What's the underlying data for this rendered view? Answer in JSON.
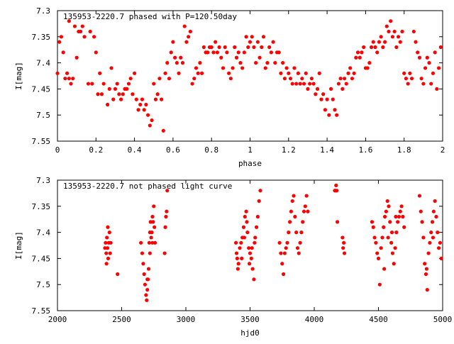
{
  "chart_data": [
    {
      "type": "scatter",
      "title": "135953-2220.7 phased with P=120.50day",
      "xlabel": "phase",
      "ylabel": "I[mag]",
      "xlim": [
        0,
        2
      ],
      "ylim": [
        7.3,
        7.55
      ],
      "y_inverted": true,
      "x_ticks": [
        "0",
        "0.2",
        "0.4",
        "0.6",
        "0.8",
        "1",
        "1.2",
        "1.4",
        "1.6",
        "1.8",
        "2"
      ],
      "y_ticks": [
        "7.3",
        "7.35",
        "7.4",
        "7.45",
        "7.5",
        "7.55"
      ],
      "marker_color": "#ff0000",
      "grid": false,
      "points": [
        [
          0.0,
          7.42
        ],
        [
          0.01,
          7.36
        ],
        [
          0.02,
          7.35
        ],
        [
          0.03,
          7.38
        ],
        [
          0.04,
          7.43
        ],
        [
          0.05,
          7.42
        ],
        [
          0.06,
          7.43
        ],
        [
          0.07,
          7.44
        ],
        [
          0.08,
          7.43
        ],
        [
          0.06,
          7.32
        ],
        [
          0.09,
          7.33
        ],
        [
          0.1,
          7.39
        ],
        [
          0.11,
          7.34
        ],
        [
          0.12,
          7.34
        ],
        [
          0.13,
          7.33
        ],
        [
          0.14,
          7.35
        ],
        [
          0.16,
          7.44
        ],
        [
          0.17,
          7.34
        ],
        [
          0.18,
          7.44
        ],
        [
          0.19,
          7.35
        ],
        [
          0.2,
          7.38
        ],
        [
          0.21,
          7.46
        ],
        [
          0.22,
          7.42
        ],
        [
          0.23,
          7.46
        ],
        [
          0.24,
          7.44
        ],
        [
          0.26,
          7.48
        ],
        [
          0.27,
          7.45
        ],
        [
          0.28,
          7.41
        ],
        [
          0.29,
          7.47
        ],
        [
          0.3,
          7.45
        ],
        [
          0.31,
          7.44
        ],
        [
          0.32,
          7.46
        ],
        [
          0.33,
          7.47
        ],
        [
          0.34,
          7.46
        ],
        [
          0.35,
          7.45
        ],
        [
          0.36,
          7.45
        ],
        [
          0.37,
          7.44
        ],
        [
          0.38,
          7.43
        ],
        [
          0.39,
          7.46
        ],
        [
          0.4,
          7.42
        ],
        [
          0.41,
          7.47
        ],
        [
          0.42,
          7.49
        ],
        [
          0.43,
          7.48
        ],
        [
          0.44,
          7.47
        ],
        [
          0.45,
          7.49
        ],
        [
          0.46,
          7.48
        ],
        [
          0.47,
          7.5
        ],
        [
          0.48,
          7.52
        ],
        [
          0.49,
          7.51
        ],
        [
          0.5,
          7.44
        ],
        [
          0.51,
          7.47
        ],
        [
          0.52,
          7.46
        ],
        [
          0.53,
          7.43
        ],
        [
          0.54,
          7.47
        ],
        [
          0.55,
          7.53
        ],
        [
          0.56,
          7.42
        ],
        [
          0.57,
          7.4
        ],
        [
          0.58,
          7.43
        ],
        [
          0.59,
          7.38
        ],
        [
          0.6,
          7.36
        ],
        [
          0.61,
          7.39
        ],
        [
          0.62,
          7.4
        ],
        [
          0.63,
          7.42
        ],
        [
          0.64,
          7.39
        ],
        [
          0.65,
          7.4
        ],
        [
          0.66,
          7.33
        ],
        [
          0.67,
          7.36
        ],
        [
          0.68,
          7.35
        ],
        [
          0.69,
          7.34
        ],
        [
          0.7,
          7.44
        ],
        [
          0.71,
          7.43
        ],
        [
          0.72,
          7.41
        ],
        [
          0.73,
          7.42
        ],
        [
          0.74,
          7.4
        ],
        [
          0.75,
          7.42
        ],
        [
          0.76,
          7.37
        ],
        [
          0.77,
          7.38
        ],
        [
          0.78,
          7.38
        ],
        [
          0.79,
          7.37
        ],
        [
          0.8,
          7.37
        ],
        [
          0.81,
          7.38
        ],
        [
          0.82,
          7.36
        ],
        [
          0.83,
          7.38
        ],
        [
          0.84,
          7.37
        ],
        [
          0.85,
          7.39
        ],
        [
          0.86,
          7.41
        ],
        [
          0.87,
          7.37
        ],
        [
          0.88,
          7.38
        ],
        [
          0.89,
          7.42
        ],
        [
          0.9,
          7.43
        ],
        [
          0.91,
          7.41
        ],
        [
          0.92,
          7.37
        ],
        [
          0.93,
          7.39
        ],
        [
          0.94,
          7.38
        ],
        [
          0.95,
          7.4
        ],
        [
          0.96,
          7.41
        ],
        [
          0.97,
          7.38
        ],
        [
          0.98,
          7.35
        ],
        [
          0.99,
          7.37
        ],
        [
          1.0,
          7.36
        ],
        [
          1.01,
          7.35
        ],
        [
          1.02,
          7.37
        ],
        [
          1.03,
          7.4
        ],
        [
          1.04,
          7.36
        ],
        [
          1.05,
          7.39
        ],
        [
          1.06,
          7.37
        ],
        [
          1.07,
          7.35
        ],
        [
          1.08,
          7.41
        ],
        [
          1.09,
          7.4
        ],
        [
          1.1,
          7.37
        ],
        [
          1.11,
          7.38
        ],
        [
          1.12,
          7.36
        ],
        [
          1.13,
          7.4
        ],
        [
          1.14,
          7.38
        ],
        [
          1.15,
          7.38
        ],
        [
          1.16,
          7.42
        ],
        [
          1.17,
          7.4
        ],
        [
          1.18,
          7.43
        ],
        [
          1.19,
          7.41
        ],
        [
          1.2,
          7.42
        ],
        [
          1.21,
          7.43
        ],
        [
          1.22,
          7.44
        ],
        [
          1.23,
          7.41
        ],
        [
          1.24,
          7.44
        ],
        [
          1.25,
          7.42
        ],
        [
          1.26,
          7.44
        ],
        [
          1.27,
          7.43
        ],
        [
          1.28,
          7.44
        ],
        [
          1.29,
          7.42
        ],
        [
          1.3,
          7.45
        ],
        [
          1.31,
          7.44
        ],
        [
          1.32,
          7.43
        ],
        [
          1.33,
          7.44
        ],
        [
          1.34,
          7.46
        ],
        [
          1.35,
          7.45
        ],
        [
          1.36,
          7.42
        ],
        [
          1.37,
          7.47
        ],
        [
          1.38,
          7.46
        ],
        [
          1.39,
          7.49
        ],
        [
          1.4,
          7.47
        ],
        [
          1.41,
          7.5
        ],
        [
          1.42,
          7.45
        ],
        [
          1.43,
          7.47
        ],
        [
          1.44,
          7.49
        ],
        [
          1.45,
          7.5
        ],
        [
          1.46,
          7.44
        ],
        [
          1.47,
          7.43
        ],
        [
          1.48,
          7.45
        ],
        [
          1.49,
          7.43
        ],
        [
          1.5,
          7.44
        ],
        [
          1.51,
          7.42
        ],
        [
          1.52,
          7.41
        ],
        [
          1.53,
          7.43
        ],
        [
          1.54,
          7.42
        ],
        [
          1.55,
          7.39
        ],
        [
          1.56,
          7.38
        ],
        [
          1.57,
          7.39
        ],
        [
          1.58,
          7.38
        ],
        [
          1.59,
          7.37
        ],
        [
          1.6,
          7.41
        ],
        [
          1.61,
          7.41
        ],
        [
          1.62,
          7.4
        ],
        [
          1.63,
          7.37
        ],
        [
          1.64,
          7.36
        ],
        [
          1.65,
          7.37
        ],
        [
          1.66,
          7.38
        ],
        [
          1.67,
          7.36
        ],
        [
          1.68,
          7.35
        ],
        [
          1.69,
          7.37
        ],
        [
          1.7,
          7.36
        ],
        [
          1.71,
          7.33
        ],
        [
          1.72,
          7.34
        ],
        [
          1.73,
          7.32
        ],
        [
          1.74,
          7.35
        ],
        [
          1.75,
          7.34
        ],
        [
          1.76,
          7.37
        ],
        [
          1.77,
          7.35
        ],
        [
          1.78,
          7.36
        ],
        [
          1.79,
          7.34
        ],
        [
          1.8,
          7.42
        ],
        [
          1.81,
          7.43
        ],
        [
          1.82,
          7.44
        ],
        [
          1.83,
          7.42
        ],
        [
          1.84,
          7.43
        ],
        [
          1.85,
          7.34
        ],
        [
          1.86,
          7.36
        ],
        [
          1.87,
          7.38
        ],
        [
          1.88,
          7.39
        ],
        [
          1.89,
          7.43
        ],
        [
          1.9,
          7.44
        ],
        [
          1.91,
          7.41
        ],
        [
          1.92,
          7.39
        ],
        [
          1.93,
          7.4
        ],
        [
          1.94,
          7.44
        ],
        [
          1.95,
          7.42
        ],
        [
          1.96,
          7.38
        ],
        [
          1.97,
          7.45
        ],
        [
          1.98,
          7.41
        ],
        [
          1.99,
          7.37
        ]
      ]
    },
    {
      "type": "scatter",
      "title": "135953-2220.7 not phased light curve",
      "xlabel": "hjd0",
      "ylabel": "I[mag]",
      "xlim": [
        2000,
        5000
      ],
      "ylim": [
        7.3,
        7.55
      ],
      "y_inverted": true,
      "x_ticks": [
        "2000",
        "2500",
        "3000",
        "3500",
        "4000",
        "4500",
        "5000"
      ],
      "y_ticks": [
        "7.3",
        "7.35",
        "7.4",
        "7.45",
        "7.5",
        "7.55"
      ],
      "marker_color": "#ff0000",
      "grid": false,
      "points": [
        [
          2370,
          7.43
        ],
        [
          2375,
          7.42
        ],
        [
          2380,
          7.44
        ],
        [
          2385,
          7.41
        ],
        [
          2390,
          7.43
        ],
        [
          2395,
          7.45
        ],
        [
          2400,
          7.42
        ],
        [
          2405,
          7.4
        ],
        [
          2410,
          7.44
        ],
        [
          2415,
          7.42
        ],
        [
          2382,
          7.46
        ],
        [
          2392,
          7.39
        ],
        [
          2468,
          7.48
        ],
        [
          2650,
          7.42
        ],
        [
          2660,
          7.44
        ],
        [
          2668,
          7.46
        ],
        [
          2675,
          7.48
        ],
        [
          2682,
          7.5
        ],
        [
          2690,
          7.52
        ],
        [
          2695,
          7.53
        ],
        [
          2700,
          7.51
        ],
        [
          2705,
          7.49
        ],
        [
          2710,
          7.47
        ],
        [
          2715,
          7.42
        ],
        [
          2720,
          7.4
        ],
        [
          2725,
          7.38
        ],
        [
          2730,
          7.41
        ],
        [
          2735,
          7.4
        ],
        [
          2740,
          7.37
        ],
        [
          2745,
          7.38
        ],
        [
          2750,
          7.35
        ],
        [
          2755,
          7.39
        ],
        [
          2760,
          7.42
        ],
        [
          2740,
          7.42
        ],
        [
          2700,
          7.49
        ],
        [
          2720,
          7.44
        ],
        [
          2835,
          7.44
        ],
        [
          2840,
          7.39
        ],
        [
          2845,
          7.37
        ],
        [
          2850,
          7.36
        ],
        [
          2855,
          7.32
        ],
        [
          3390,
          7.42
        ],
        [
          3395,
          7.44
        ],
        [
          3400,
          7.45
        ],
        [
          3405,
          7.47
        ],
        [
          3410,
          7.46
        ],
        [
          3420,
          7.43
        ],
        [
          3430,
          7.42
        ],
        [
          3440,
          7.41
        ],
        [
          3450,
          7.39
        ],
        [
          3460,
          7.37
        ],
        [
          3470,
          7.36
        ],
        [
          3480,
          7.4
        ],
        [
          3490,
          7.43
        ],
        [
          3500,
          7.44
        ],
        [
          3510,
          7.45
        ],
        [
          3520,
          7.47
        ],
        [
          3530,
          7.49
        ],
        [
          3540,
          7.41
        ],
        [
          3550,
          7.39
        ],
        [
          3560,
          7.37
        ],
        [
          3570,
          7.34
        ],
        [
          3580,
          7.32
        ],
        [
          3435,
          7.45
        ],
        [
          3455,
          7.41
        ],
        [
          3475,
          7.38
        ],
        [
          3495,
          7.46
        ],
        [
          3515,
          7.43
        ],
        [
          3535,
          7.42
        ],
        [
          3730,
          7.42
        ],
        [
          3740,
          7.44
        ],
        [
          3750,
          7.46
        ],
        [
          3760,
          7.48
        ],
        [
          3770,
          7.44
        ],
        [
          3780,
          7.43
        ],
        [
          3790,
          7.42
        ],
        [
          3800,
          7.4
        ],
        [
          3810,
          7.38
        ],
        [
          3820,
          7.36
        ],
        [
          3830,
          7.34
        ],
        [
          3840,
          7.33
        ],
        [
          3850,
          7.37
        ],
        [
          3860,
          7.4
        ],
        [
          3870,
          7.43
        ],
        [
          3880,
          7.44
        ],
        [
          3890,
          7.42
        ],
        [
          3900,
          7.4
        ],
        [
          3910,
          7.38
        ],
        [
          3920,
          7.36
        ],
        [
          3930,
          7.35
        ],
        [
          3940,
          7.33
        ],
        [
          3950,
          7.36
        ],
        [
          4160,
          7.32
        ],
        [
          4165,
          7.32
        ],
        [
          4170,
          7.31
        ],
        [
          4175,
          7.32
        ],
        [
          4180,
          7.38
        ],
        [
          4220,
          7.41
        ],
        [
          4225,
          7.43
        ],
        [
          4230,
          7.42
        ],
        [
          4235,
          7.44
        ],
        [
          4450,
          7.38
        ],
        [
          4460,
          7.39
        ],
        [
          4470,
          7.41
        ],
        [
          4480,
          7.42
        ],
        [
          4490,
          7.44
        ],
        [
          4500,
          7.45
        ],
        [
          4510,
          7.5
        ],
        [
          4520,
          7.43
        ],
        [
          4530,
          7.41
        ],
        [
          4540,
          7.39
        ],
        [
          4550,
          7.37
        ],
        [
          4560,
          7.36
        ],
        [
          4570,
          7.34
        ],
        [
          4580,
          7.35
        ],
        [
          4590,
          7.38
        ],
        [
          4600,
          7.42
        ],
        [
          4610,
          7.44
        ],
        [
          4620,
          7.46
        ],
        [
          4630,
          7.43
        ],
        [
          4640,
          7.4
        ],
        [
          4650,
          7.38
        ],
        [
          4660,
          7.37
        ],
        [
          4670,
          7.36
        ],
        [
          4680,
          7.35
        ],
        [
          4690,
          7.37
        ],
        [
          4700,
          7.39
        ],
        [
          4545,
          7.47
        ],
        [
          4575,
          7.41
        ],
        [
          4605,
          7.4
        ],
        [
          4635,
          7.37
        ],
        [
          4820,
          7.33
        ],
        [
          4830,
          7.36
        ],
        [
          4840,
          7.38
        ],
        [
          4850,
          7.41
        ],
        [
          4860,
          7.46
        ],
        [
          4870,
          7.48
        ],
        [
          4880,
          7.51
        ],
        [
          4890,
          7.44
        ],
        [
          4900,
          7.42
        ],
        [
          4910,
          7.4
        ],
        [
          4920,
          7.38
        ],
        [
          4930,
          7.36
        ],
        [
          4940,
          7.34
        ],
        [
          4950,
          7.37
        ],
        [
          4960,
          7.4
        ],
        [
          4970,
          7.43
        ],
        [
          4980,
          7.42
        ],
        [
          4990,
          7.45
        ],
        [
          4875,
          7.47
        ],
        [
          4925,
          7.41
        ]
      ]
    }
  ]
}
